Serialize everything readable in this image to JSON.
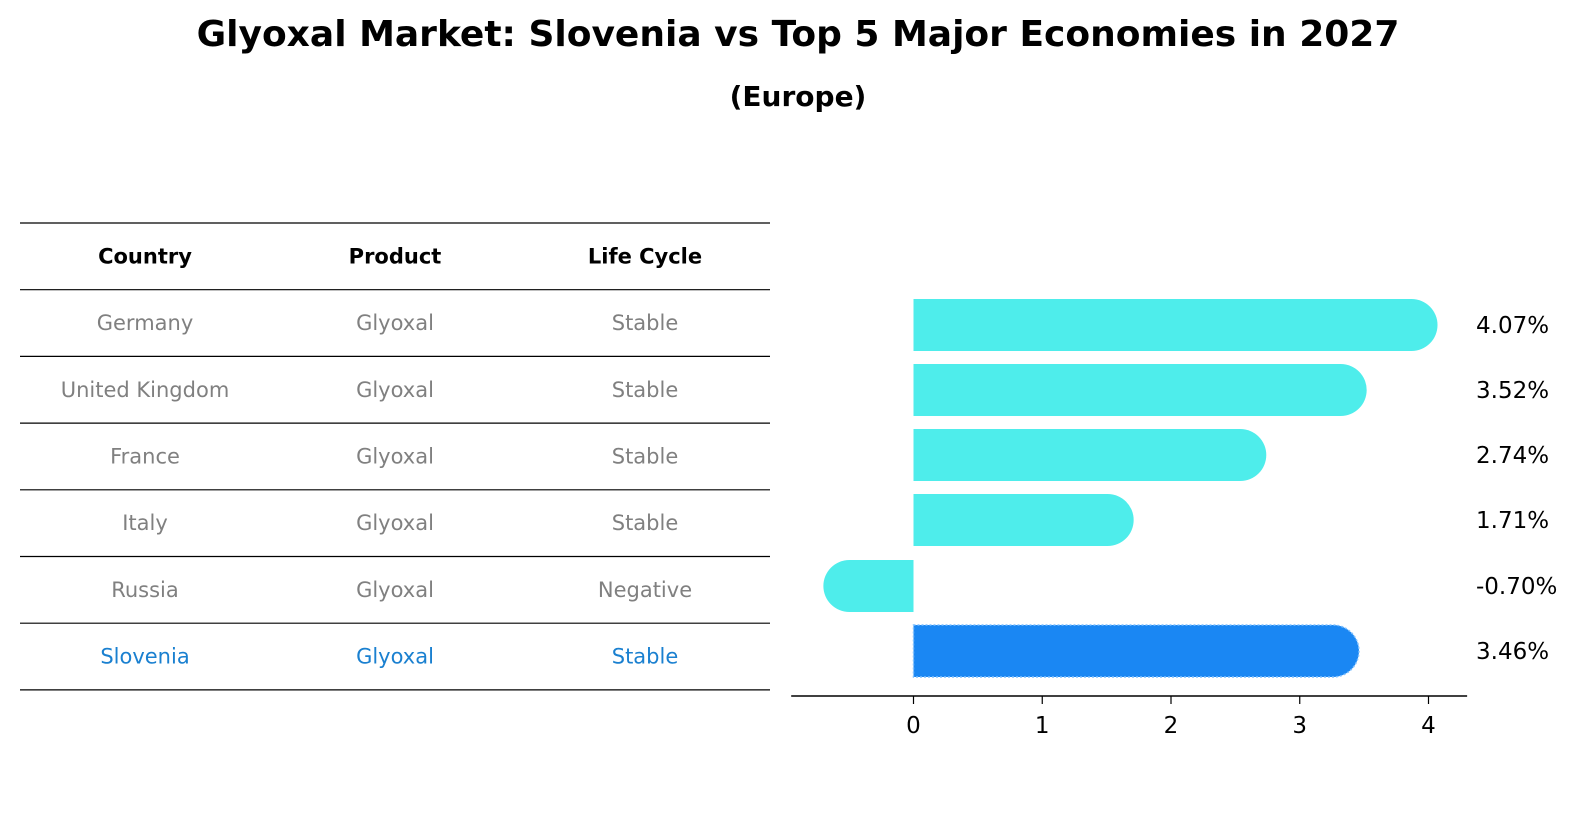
{
  "title": "Glyoxal Market: Slovenia vs Top 5 Major Economies in 2027",
  "subtitle": "(Europe)",
  "colors": {
    "bar": "#4EEDEB",
    "highlight_bar": "#1A87F3",
    "highlight_text": "#1A80D0",
    "row_text": "#808080",
    "header_text": "#000000"
  },
  "table": {
    "headers": [
      "Country",
      "Product",
      "Life Cycle"
    ],
    "rows": [
      {
        "country": "Germany",
        "product": "Glyoxal",
        "life_cycle": "Stable",
        "highlight": false
      },
      {
        "country": "United Kingdom",
        "product": "Glyoxal",
        "life_cycle": "Stable",
        "highlight": false
      },
      {
        "country": "France",
        "product": "Glyoxal",
        "life_cycle": "Stable",
        "highlight": false
      },
      {
        "country": "Italy",
        "product": "Glyoxal",
        "life_cycle": "Stable",
        "highlight": false
      },
      {
        "country": "Russia",
        "product": "Glyoxal",
        "life_cycle": "Negative",
        "highlight": false
      },
      {
        "country": "Slovenia",
        "product": "Glyoxal",
        "life_cycle": "Stable",
        "highlight": true
      }
    ]
  },
  "chart_data": {
    "type": "bar",
    "orientation": "horizontal",
    "categories": [
      "Germany",
      "United Kingdom",
      "France",
      "Italy",
      "Russia",
      "Slovenia"
    ],
    "values": [
      4.07,
      3.52,
      2.74,
      1.71,
      -0.7,
      3.46
    ],
    "labels": [
      "4.07%",
      "3.52%",
      "2.74%",
      "1.71%",
      "-0.70%",
      "3.46%"
    ],
    "highlight_index": 5,
    "xticks": [
      0,
      1,
      2,
      3,
      4
    ],
    "xlim": [
      -0.95,
      4.3
    ],
    "grid": false
  }
}
